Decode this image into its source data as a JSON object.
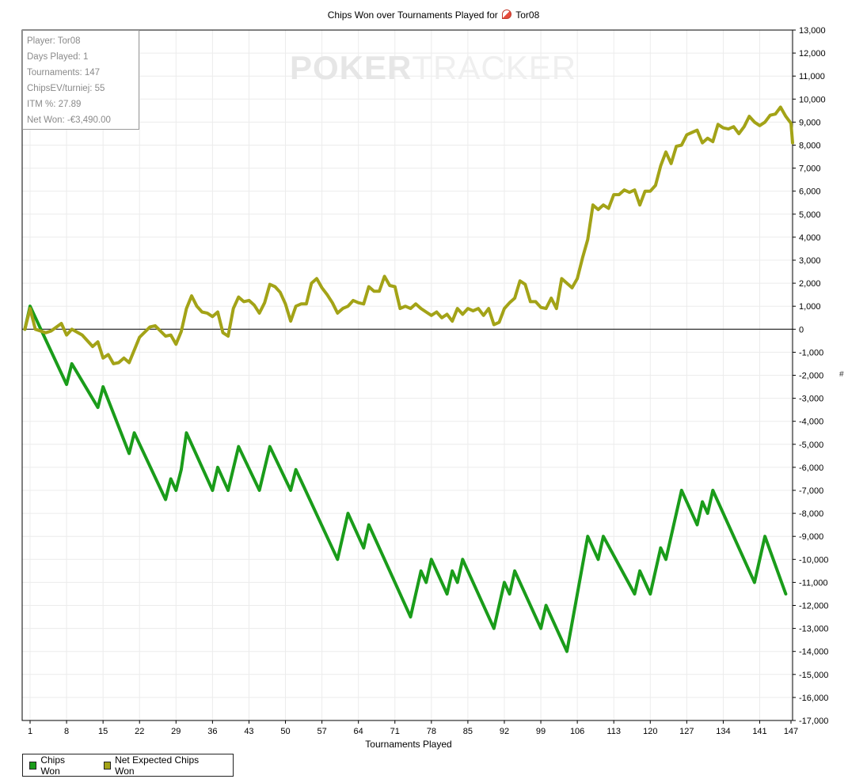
{
  "chart_data": {
    "type": "line",
    "title": "Chips Won over Tournaments Played for",
    "player_name": "Tor08",
    "xlabel": "Tournaments Played",
    "ylabel": "#",
    "x_ticks": [
      1,
      8,
      15,
      22,
      29,
      36,
      43,
      50,
      57,
      64,
      71,
      78,
      85,
      92,
      99,
      106,
      113,
      120,
      127,
      134,
      141,
      147
    ],
    "y_ticks": [
      -17000,
      -16000,
      -15000,
      -14000,
      -13000,
      -12000,
      -11000,
      -10000,
      -9000,
      -8000,
      -7000,
      -6000,
      -5000,
      -4000,
      -3000,
      -2000,
      -1000,
      0,
      1000,
      2000,
      3000,
      4000,
      5000,
      6000,
      7000,
      8000,
      9000,
      10000,
      11000,
      12000,
      13000
    ],
    "y_tick_labels": [
      "-17,000",
      "-16,000",
      "-15,000",
      "-14,000",
      "-13,000",
      "-12,000",
      "-11,000",
      "-10,000",
      "-9,000",
      "-8,000",
      "-7,000",
      "-6,000",
      "-5,000",
      "-4,000",
      "-3,000",
      "-2,000",
      "-1,000",
      "0",
      "1,000",
      "2,000",
      "3,000",
      "4,000",
      "5,000",
      "6,000",
      "7,000",
      "8,000",
      "9,000",
      "10,000",
      "11,000",
      "12,000",
      "13,000"
    ],
    "xlim": [
      0,
      147
    ],
    "ylim": [
      -17000,
      13000
    ],
    "grid": true,
    "legend_position": "bottom-left",
    "series": [
      {
        "name": "Chips Won",
        "color": "#1a9c1a",
        "points": [
          [
            0,
            0
          ],
          [
            1,
            1000
          ],
          [
            8,
            -2400
          ],
          [
            9,
            -1500
          ],
          [
            14,
            -3400
          ],
          [
            15,
            -2500
          ],
          [
            20,
            -5400
          ],
          [
            21,
            -4500
          ],
          [
            27,
            -7400
          ],
          [
            28,
            -6500
          ],
          [
            29,
            -7000
          ],
          [
            30,
            -6100
          ],
          [
            31,
            -4500
          ],
          [
            36,
            -7000
          ],
          [
            37,
            -6000
          ],
          [
            39,
            -7000
          ],
          [
            41,
            -5100
          ],
          [
            45,
            -7000
          ],
          [
            47,
            -5100
          ],
          [
            51,
            -7000
          ],
          [
            52,
            -6100
          ],
          [
            60,
            -10000
          ],
          [
            62,
            -8000
          ],
          [
            65,
            -9500
          ],
          [
            66,
            -8500
          ],
          [
            74,
            -12500
          ],
          [
            76,
            -10500
          ],
          [
            77,
            -11000
          ],
          [
            78,
            -10000
          ],
          [
            81,
            -11500
          ],
          [
            82,
            -10500
          ],
          [
            83,
            -11000
          ],
          [
            84,
            -10000
          ],
          [
            90,
            -13000
          ],
          [
            92,
            -11000
          ],
          [
            93,
            -11500
          ],
          [
            94,
            -10500
          ],
          [
            99,
            -13000
          ],
          [
            100,
            -12000
          ],
          [
            104,
            -14000
          ],
          [
            108,
            -9000
          ],
          [
            110,
            -10000
          ],
          [
            111,
            -9000
          ],
          [
            117,
            -11500
          ],
          [
            118,
            -10500
          ],
          [
            120,
            -11500
          ],
          [
            122,
            -9500
          ],
          [
            123,
            -10000
          ],
          [
            126,
            -7000
          ],
          [
            129,
            -8500
          ],
          [
            130,
            -7500
          ],
          [
            131,
            -8000
          ],
          [
            132,
            -7000
          ],
          [
            140,
            -11000
          ],
          [
            142,
            -9000
          ],
          [
            146,
            -11500
          ]
        ]
      },
      {
        "name": "Net Expected Chips Won",
        "color": "#a3a317",
        "points": [
          [
            0,
            0
          ],
          [
            1,
            900
          ],
          [
            2,
            0
          ],
          [
            4,
            -150
          ],
          [
            5,
            -80
          ],
          [
            7,
            250
          ],
          [
            8,
            -250
          ],
          [
            9,
            0
          ],
          [
            11,
            -250
          ],
          [
            13,
            -750
          ],
          [
            14,
            -550
          ],
          [
            15,
            -1250
          ],
          [
            16,
            -1100
          ],
          [
            17,
            -1500
          ],
          [
            18,
            -1450
          ],
          [
            19,
            -1250
          ],
          [
            20,
            -1450
          ],
          [
            22,
            -350
          ],
          [
            24,
            100
          ],
          [
            25,
            150
          ],
          [
            27,
            -300
          ],
          [
            28,
            -250
          ],
          [
            29,
            -650
          ],
          [
            30,
            -100
          ],
          [
            31,
            900
          ],
          [
            32,
            1450
          ],
          [
            33,
            1000
          ],
          [
            34,
            750
          ],
          [
            35,
            700
          ],
          [
            36,
            550
          ],
          [
            37,
            750
          ],
          [
            38,
            -150
          ],
          [
            39,
            -300
          ],
          [
            40,
            900
          ],
          [
            41,
            1400
          ],
          [
            42,
            1200
          ],
          [
            43,
            1250
          ],
          [
            44,
            1050
          ],
          [
            45,
            700
          ],
          [
            46,
            1150
          ],
          [
            47,
            1950
          ],
          [
            48,
            1850
          ],
          [
            49,
            1600
          ],
          [
            50,
            1100
          ],
          [
            51,
            350
          ],
          [
            52,
            1000
          ],
          [
            53,
            1100
          ],
          [
            54,
            1100
          ],
          [
            55,
            2000
          ],
          [
            56,
            2200
          ],
          [
            57,
            1800
          ],
          [
            58,
            1500
          ],
          [
            59,
            1150
          ],
          [
            60,
            700
          ],
          [
            61,
            900
          ],
          [
            62,
            1000
          ],
          [
            63,
            1250
          ],
          [
            64,
            1150
          ],
          [
            65,
            1100
          ],
          [
            66,
            1850
          ],
          [
            67,
            1650
          ],
          [
            68,
            1650
          ],
          [
            69,
            2300
          ],
          [
            70,
            1900
          ],
          [
            71,
            1850
          ],
          [
            72,
            900
          ],
          [
            73,
            1000
          ],
          [
            74,
            900
          ],
          [
            75,
            1100
          ],
          [
            76,
            900
          ],
          [
            77,
            750
          ],
          [
            78,
            600
          ],
          [
            79,
            750
          ],
          [
            80,
            500
          ],
          [
            81,
            650
          ],
          [
            82,
            350
          ],
          [
            83,
            900
          ],
          [
            84,
            650
          ],
          [
            85,
            900
          ],
          [
            86,
            800
          ],
          [
            87,
            900
          ],
          [
            88,
            600
          ],
          [
            89,
            900
          ],
          [
            90,
            200
          ],
          [
            91,
            300
          ],
          [
            92,
            900
          ],
          [
            93,
            1150
          ],
          [
            94,
            1350
          ],
          [
            95,
            2100
          ],
          [
            96,
            1950
          ],
          [
            97,
            1200
          ],
          [
            98,
            1200
          ],
          [
            99,
            950
          ],
          [
            100,
            900
          ],
          [
            101,
            1350
          ],
          [
            102,
            900
          ],
          [
            103,
            2200
          ],
          [
            104,
            2000
          ],
          [
            105,
            1800
          ],
          [
            106,
            2200
          ],
          [
            107,
            3100
          ],
          [
            108,
            3900
          ],
          [
            109,
            5400
          ],
          [
            110,
            5200
          ],
          [
            111,
            5400
          ],
          [
            112,
            5250
          ],
          [
            113,
            5850
          ],
          [
            114,
            5850
          ],
          [
            115,
            6050
          ],
          [
            116,
            5950
          ],
          [
            117,
            6050
          ],
          [
            118,
            5400
          ],
          [
            119,
            6000
          ],
          [
            120,
            6000
          ],
          [
            121,
            6250
          ],
          [
            122,
            7100
          ],
          [
            123,
            7700
          ],
          [
            124,
            7200
          ],
          [
            125,
            7950
          ],
          [
            126,
            8000
          ],
          [
            127,
            8450
          ],
          [
            128,
            8550
          ],
          [
            129,
            8650
          ],
          [
            130,
            8100
          ],
          [
            131,
            8300
          ],
          [
            132,
            8150
          ],
          [
            133,
            8900
          ],
          [
            134,
            8750
          ],
          [
            135,
            8700
          ],
          [
            136,
            8800
          ],
          [
            137,
            8500
          ],
          [
            138,
            8800
          ],
          [
            139,
            9250
          ],
          [
            140,
            9000
          ],
          [
            141,
            8850
          ],
          [
            142,
            9000
          ],
          [
            143,
            9300
          ],
          [
            144,
            9350
          ],
          [
            145,
            9650
          ],
          [
            146,
            9250
          ],
          [
            147,
            8950
          ],
          [
            148,
            8100
          ]
        ]
      }
    ]
  },
  "info_box": [
    "Player: Tor08",
    "Days Played: 1",
    "Tournaments: 147",
    "ChipsEV/turniej: 55",
    "ITM %: 27.89",
    "Net Won: -€3,490.00"
  ],
  "watermark": {
    "left": "POKER",
    "right": "TRACKER"
  },
  "legend": [
    {
      "label": "Chips Won",
      "color": "#1a9c1a"
    },
    {
      "label": "Net Expected Chips Won",
      "color": "#a3a317"
    }
  ]
}
